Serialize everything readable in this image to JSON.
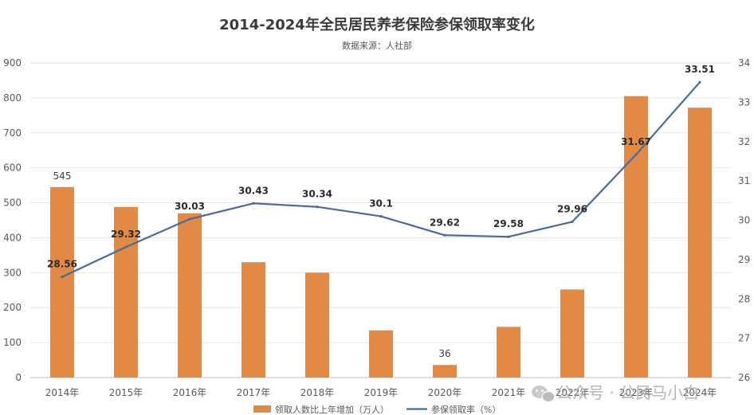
{
  "chart_data": {
    "type": "bar",
    "title": "2014-2024年全民居民养老保险参保领取率变化",
    "subtitle": "数据来源：人社部",
    "categories": [
      "2014年",
      "2015年",
      "2016年",
      "2017年",
      "2018年",
      "2019年",
      "2020年",
      "2021年",
      "2022年",
      "2023年",
      "2024年"
    ],
    "series": [
      {
        "name": "领取人数比上年增加（万人）",
        "type": "bar",
        "axis": "left",
        "color": "#e08a45",
        "values": [
          545,
          488,
          470,
          330,
          300,
          135,
          36,
          145,
          252,
          805,
          772
        ],
        "value_labels": {
          "0": "545",
          "6": "36"
        }
      },
      {
        "name": "参保领取率（%）",
        "type": "line",
        "axis": "right",
        "color": "#4a6b96",
        "values": [
          28.56,
          29.32,
          30.03,
          30.43,
          30.34,
          30.1,
          29.62,
          29.58,
          29.96,
          31.67,
          33.51
        ],
        "value_labels": [
          "28.56",
          "29.32",
          "30.03",
          "30.43",
          "30.34",
          "30.1",
          "29.62",
          "29.58",
          "29.96",
          "31.67",
          "33.51"
        ]
      }
    ],
    "y_left": {
      "min": 0,
      "max": 900,
      "step": 100
    },
    "y_right": {
      "min": 26,
      "max": 34,
      "step": 1
    },
    "grid": true,
    "legend_position": "bottom"
  },
  "watermark": "公众号 · 公民马小白"
}
